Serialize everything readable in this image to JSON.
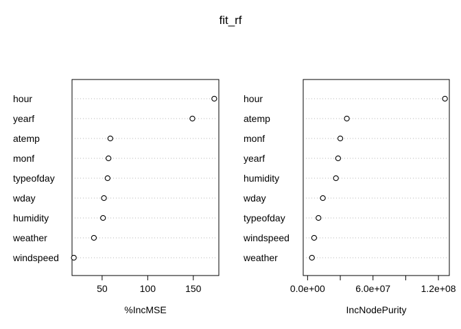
{
  "title": "fit_rf",
  "chart_data": [
    {
      "type": "scatter",
      "subtype": "dotchart",
      "xlabel": "%IncMSE",
      "ylabel": "",
      "xlim": [
        17,
        178
      ],
      "xticks": [
        50,
        100,
        150
      ],
      "xtick_labels": [
        "50",
        "100",
        "150"
      ],
      "grid": "dotted horizontal guide lines",
      "categories": [
        "hour",
        "yearf",
        "atemp",
        "monf",
        "typeofday",
        "wday",
        "humidity",
        "weather",
        "windspeed"
      ],
      "values": [
        173,
        149,
        59,
        57,
        56,
        52,
        51,
        41,
        19
      ]
    },
    {
      "type": "scatter",
      "subtype": "dotchart",
      "xlabel": "IncNodePurity",
      "ylabel": "",
      "xlim": [
        -4000000,
        130000000
      ],
      "xticks": [
        0,
        30000000,
        60000000,
        90000000,
        120000000
      ],
      "xtick_labels": [
        "0.0e+00",
        "",
        "6.0e+07",
        "",
        "1.2e+08"
      ],
      "grid": "dotted horizontal guide lines",
      "categories": [
        "hour",
        "atemp",
        "monf",
        "yearf",
        "humidity",
        "wday",
        "typeofday",
        "windspeed",
        "weather"
      ],
      "values": [
        126000000,
        36000000,
        30000000,
        28000000,
        26000000,
        14000000,
        10000000,
        6000000,
        4000000
      ]
    }
  ]
}
